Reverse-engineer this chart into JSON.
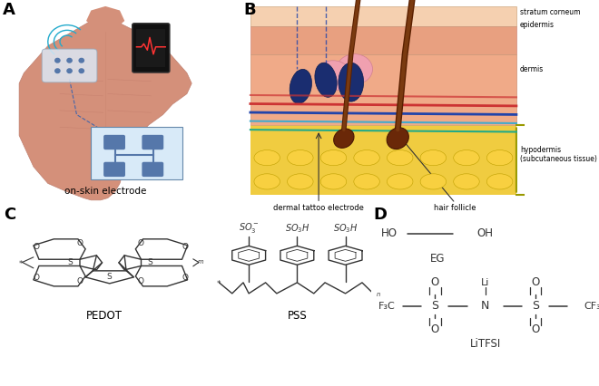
{
  "panel_label_fontsize": 13,
  "panel_label_color": "#000000",
  "background_color": "#ffffff",
  "text_color": "#000000",
  "label_A": "on-skin electrode",
  "label_B_1": "dermal tattoo electrode",
  "label_B_2": "hair follicle",
  "label_B_right_1": "stratum corneum",
  "label_B_right_2": "epidermis",
  "label_B_right_3": "dermis",
  "label_B_right_4": "hypodermis",
  "label_B_right_5": "(subcutaneous tissue)",
  "label_C_1": "PEDOT",
  "label_C_2": "PSS",
  "label_D": "LiTFSI",
  "label_EG": "EG",
  "body_skin_color": "#d4907a",
  "body_skin_light": "#e8b09a",
  "body_skin_dark": "#c07060",
  "electrode_color": "#5577aa",
  "electrode_inset_bg": "#cce0f0",
  "hair_color_dark": "#5a2000",
  "hair_color_mid": "#7a3a10",
  "sc_color": "#f0c8a8",
  "epidermis_color": "#e09878",
  "dermis_color": "#eeaa88",
  "hypodermis_color": "#e8c830",
  "nerve_blue": "#1a2f70",
  "nerve_red": "#cc2222",
  "nerve_cyan": "#44aacc",
  "bond_color": "#333333",
  "so3_color": "#333333",
  "litfsi_color": "#333333"
}
